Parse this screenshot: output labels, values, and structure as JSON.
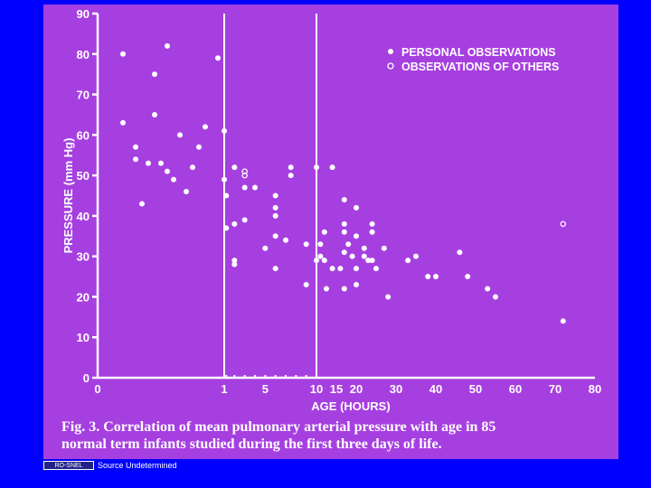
{
  "chart_data": {
    "type": "scatter",
    "ylabel": "PRESSURE (mm Hg)",
    "xlabel": "AGE (HOURS)",
    "ylim": [
      0,
      90
    ],
    "y_ticks": [
      "0",
      "10",
      "20",
      "30",
      "40",
      "50",
      "60",
      "70",
      "80",
      "90"
    ],
    "x_tick_labels": [
      "0",
      "1",
      "5",
      "10",
      "15",
      "20",
      "30",
      "40",
      "50",
      "60",
      "70",
      "80"
    ],
    "legend": [
      {
        "label": "PERSONAL OBSERVATIONS",
        "marker": "filled"
      },
      {
        "label": "OBSERVATIONS OF OTHERS",
        "marker": "open"
      }
    ],
    "legend_position": "top-right",
    "series": [
      {
        "name": "PERSONAL OBSERVATIONS",
        "marker": "filled",
        "points": [
          {
            "x": 0.2,
            "y": 80
          },
          {
            "x": 0.2,
            "y": 63
          },
          {
            "x": 0.3,
            "y": 54
          },
          {
            "x": 0.3,
            "y": 57
          },
          {
            "x": 0.35,
            "y": 43
          },
          {
            "x": 0.4,
            "y": 53
          },
          {
            "x": 0.45,
            "y": 75
          },
          {
            "x": 0.45,
            "y": 65
          },
          {
            "x": 0.5,
            "y": 53
          },
          {
            "x": 0.55,
            "y": 82
          },
          {
            "x": 0.55,
            "y": 51
          },
          {
            "x": 0.6,
            "y": 49
          },
          {
            "x": 0.65,
            "y": 60
          },
          {
            "x": 0.7,
            "y": 46
          },
          {
            "x": 0.75,
            "y": 52
          },
          {
            "x": 0.8,
            "y": 57
          },
          {
            "x": 0.85,
            "y": 62
          },
          {
            "x": 0.95,
            "y": 79
          },
          {
            "x": 1,
            "y": 61
          },
          {
            "x": 1,
            "y": 49
          },
          {
            "x": 1.2,
            "y": 45
          },
          {
            "x": 1.2,
            "y": 37
          },
          {
            "x": 2,
            "y": 52
          },
          {
            "x": 2,
            "y": 38
          },
          {
            "x": 2,
            "y": 29
          },
          {
            "x": 2,
            "y": 28
          },
          {
            "x": 3,
            "y": 39
          },
          {
            "x": 3,
            "y": 47
          },
          {
            "x": 4,
            "y": 47
          },
          {
            "x": 5,
            "y": 32
          },
          {
            "x": 6,
            "y": 45
          },
          {
            "x": 6,
            "y": 42
          },
          {
            "x": 6,
            "y": 40
          },
          {
            "x": 6,
            "y": 35
          },
          {
            "x": 6,
            "y": 27
          },
          {
            "x": 7,
            "y": 34
          },
          {
            "x": 7.5,
            "y": 52
          },
          {
            "x": 7.5,
            "y": 50
          },
          {
            "x": 9,
            "y": 33
          },
          {
            "x": 9,
            "y": 23
          },
          {
            "x": 10,
            "y": 52
          },
          {
            "x": 10,
            "y": 29
          },
          {
            "x": 11,
            "y": 33
          },
          {
            "x": 11,
            "y": 30
          },
          {
            "x": 12,
            "y": 36
          },
          {
            "x": 12,
            "y": 29
          },
          {
            "x": 12.5,
            "y": 22
          },
          {
            "x": 14,
            "y": 52
          },
          {
            "x": 14,
            "y": 27
          },
          {
            "x": 16,
            "y": 27
          },
          {
            "x": 17,
            "y": 44
          },
          {
            "x": 17,
            "y": 38
          },
          {
            "x": 17,
            "y": 36
          },
          {
            "x": 17,
            "y": 31
          },
          {
            "x": 17,
            "y": 22
          },
          {
            "x": 18,
            "y": 33
          },
          {
            "x": 19,
            "y": 30
          },
          {
            "x": 20,
            "y": 42
          },
          {
            "x": 20,
            "y": 35
          },
          {
            "x": 20,
            "y": 27
          },
          {
            "x": 20,
            "y": 23
          },
          {
            "x": 22,
            "y": 32
          },
          {
            "x": 22,
            "y": 30
          },
          {
            "x": 23,
            "y": 29
          },
          {
            "x": 24,
            "y": 38
          },
          {
            "x": 24,
            "y": 36
          },
          {
            "x": 24,
            "y": 29
          },
          {
            "x": 25,
            "y": 27
          },
          {
            "x": 27,
            "y": 32
          },
          {
            "x": 28,
            "y": 20
          },
          {
            "x": 33,
            "y": 29
          },
          {
            "x": 35,
            "y": 30
          },
          {
            "x": 38,
            "y": 25
          },
          {
            "x": 40,
            "y": 25
          },
          {
            "x": 46,
            "y": 31
          },
          {
            "x": 48,
            "y": 25
          },
          {
            "x": 53,
            "y": 22
          },
          {
            "x": 55,
            "y": 20
          },
          {
            "x": 72,
            "y": 14
          }
        ]
      },
      {
        "name": "OBSERVATIONS OF OTHERS",
        "marker": "open",
        "points": [
          {
            "x": 72,
            "y": 38
          },
          {
            "x": 3,
            "y": 50
          },
          {
            "x": 3,
            "y": 51
          }
        ]
      }
    ],
    "vertical_reference_lines_x": [
      1,
      10
    ]
  },
  "caption": {
    "line1": "Fig. 3. Correlation of mean pulmonary arterial pressure with age in 85",
    "line2": "normal term infants studied during the first three days of life."
  },
  "footer": {
    "logo_text": "RO-SNEL",
    "source": "Source Undetermined"
  },
  "colors": {
    "background": "#0000ff",
    "slide": "#a63fe0",
    "ink": "#ffffff"
  }
}
